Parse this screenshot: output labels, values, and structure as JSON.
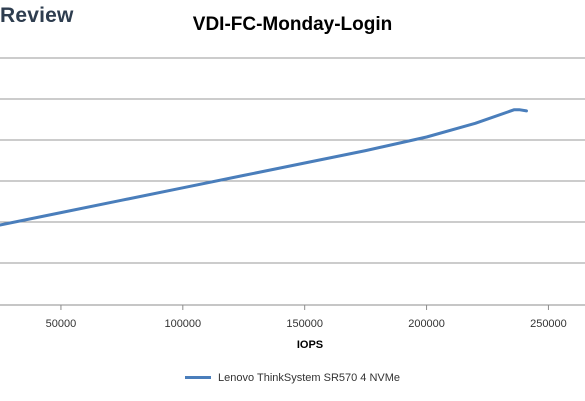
{
  "brand": {
    "text": "Review"
  },
  "chart_data": {
    "type": "line",
    "title": "VDI-FC-Monday-Login",
    "xlabel": "IOPS",
    "ylabel": "",
    "xlim": [
      25000,
      265000
    ],
    "x_ticks": [
      50000,
      100000,
      150000,
      200000,
      250000
    ],
    "grid": true,
    "legend_position": "bottom",
    "series": [
      {
        "name": "Lenovo ThinkSystem SR570 4 NVMe",
        "color": "#4a7ebb",
        "points": [
          [
            25000,
            0.0
          ],
          [
            50000,
            0.1
          ],
          [
            75000,
            0.2
          ],
          [
            100000,
            0.3
          ],
          [
            125000,
            0.4
          ],
          [
            150000,
            0.5
          ],
          [
            175000,
            0.6
          ],
          [
            200000,
            0.71
          ],
          [
            220000,
            0.82
          ],
          [
            236000,
            0.93
          ],
          [
            238000,
            0.93
          ],
          [
            241000,
            0.92
          ]
        ]
      }
    ]
  }
}
